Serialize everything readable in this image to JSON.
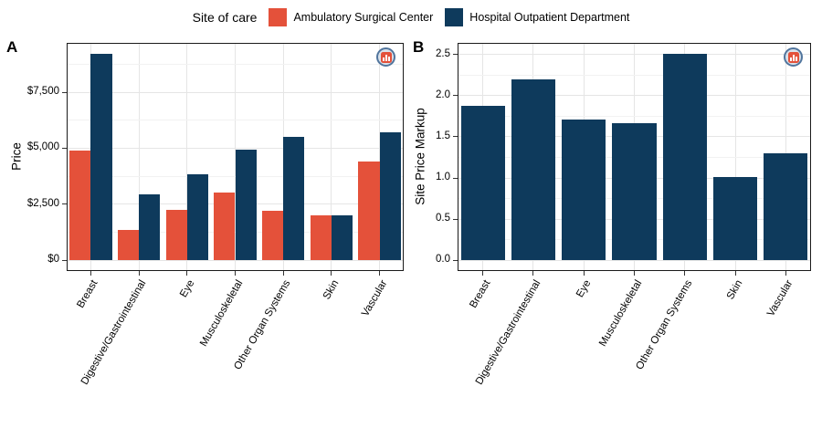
{
  "legend": {
    "title": "Site of care",
    "items": [
      {
        "label": "Ambulatory Surgical Center",
        "color": "#E4513A"
      },
      {
        "label": "Hospital Outpatient Department",
        "color": "#0E3A5C"
      }
    ]
  },
  "panels": [
    {
      "letter": "A"
    },
    {
      "letter": "B"
    }
  ],
  "logo": {
    "name": "brand-logo-badge",
    "ring_color": "#51759d",
    "bg_color": "#d8e0e9",
    "mark_color": "#E4513A"
  },
  "colors": {
    "ambulatory_surgical_center": "#E4513A",
    "hospital_outpatient_department": "#0E3A5C",
    "grid_major": "#e5e5e5",
    "grid_minor": "#f2f2f2",
    "panel_border": "#1a1a1a"
  },
  "chart_data": [
    {
      "type": "bar",
      "panel": "A",
      "title": "",
      "xlabel": "",
      "ylabel": "Price",
      "categories": [
        "Breast",
        "Digestive/Gastrointestinal",
        "Eye",
        "Musculoskeletal",
        "Other Organ Systems",
        "Skin",
        "Vascular"
      ],
      "series": [
        {
          "name": "Ambulatory Surgical Center",
          "color": "#E4513A",
          "values": [
            4900,
            1350,
            2250,
            3000,
            2200,
            2000,
            4400
          ]
        },
        {
          "name": "Hospital Outpatient Department",
          "color": "#0E3A5C",
          "values": [
            9200,
            2950,
            3850,
            4950,
            5500,
            2000,
            5700
          ]
        }
      ],
      "yticks": {
        "values": [
          0,
          2500,
          5000,
          7500
        ],
        "labels": [
          "$0",
          "$2,500",
          "$5,000",
          "$7,500"
        ]
      },
      "yticks_minor": [
        1250,
        3750,
        6250,
        8750
      ],
      "ylim": [
        -485,
        9700
      ],
      "grid": true,
      "legend_position": "top"
    },
    {
      "type": "bar",
      "panel": "B",
      "title": "",
      "xlabel": "",
      "ylabel": "Site Price Markup",
      "categories": [
        "Breast",
        "Digestive/Gastrointestinal",
        "Eye",
        "Musculoskeletal",
        "Other Organ Systems",
        "Skin",
        "Vascular"
      ],
      "series": [
        {
          "name": "Site Price Markup",
          "color": "#0E3A5C",
          "values": [
            1.87,
            2.2,
            1.71,
            1.66,
            2.51,
            1.01,
            1.3
          ]
        }
      ],
      "yticks": {
        "values": [
          0,
          0.5,
          1.0,
          1.5,
          2.0,
          2.5
        ],
        "labels": [
          "0.0",
          "0.5",
          "1.0",
          "1.5",
          "2.0",
          "2.5"
        ]
      },
      "yticks_minor": [
        0.25,
        0.75,
        1.25,
        1.75,
        2.25
      ],
      "ylim": [
        -0.13,
        2.64
      ],
      "grid": true,
      "legend_position": "none"
    }
  ]
}
